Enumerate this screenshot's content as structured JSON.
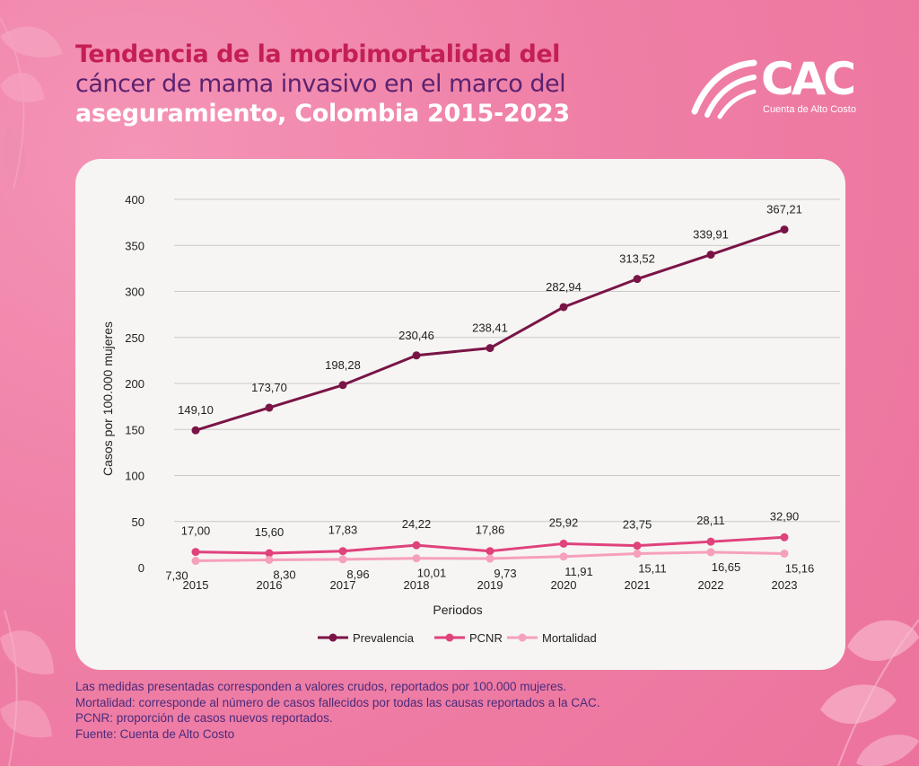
{
  "title": {
    "line1": "Tendencia de la morbimortalidad del",
    "line2": "cáncer de mama invasivo en el marco del",
    "line3": "aseguramiento, Colombia 2015-2023"
  },
  "logo": {
    "text": "CAC",
    "subtitle": "Cuenta de Alto Costo"
  },
  "colors": {
    "background": "#f07fa5",
    "prevalencia": "#7a1446",
    "pcnr": "#e0427c",
    "mortalidad": "#f6a0bd"
  },
  "footer": {
    "notes": [
      "Las medidas presentadas corresponden a valores crudos, reportados por 100.000 mujeres.",
      "Mortalidad: corresponde al número de casos fallecidos por todas las causas reportados a la CAC.",
      "PCNR: proporción de casos nuevos reportados.",
      "Fuente: Cuenta de Alto Costo"
    ]
  },
  "chart_data": {
    "type": "line",
    "x": [
      "2015",
      "2016",
      "2017",
      "2018",
      "2019",
      "2020",
      "2021",
      "2022",
      "2023"
    ],
    "xlabel": "Periodos",
    "ylabel": "Casos por 100.000 mujeres",
    "ylim": [
      0,
      400
    ],
    "yticks": [
      "0",
      "50",
      "100",
      "150",
      "200",
      "250",
      "300",
      "350",
      "400"
    ],
    "grid": true,
    "legend_position": "bottom",
    "series": [
      {
        "name": "Prevalencia",
        "color": "#7a1446",
        "values": [
          149.1,
          173.7,
          198.28,
          230.46,
          238.41,
          282.94,
          313.52,
          339.91,
          367.21
        ],
        "labels": [
          "149,10",
          "173,70",
          "198,28",
          "230,46",
          "238,41",
          "282,94",
          "313,52",
          "339,91",
          "367,21"
        ]
      },
      {
        "name": "PCNR",
        "color": "#e0427c",
        "values": [
          17.0,
          15.6,
          17.83,
          24.22,
          17.86,
          25.92,
          23.75,
          28.11,
          32.9
        ],
        "labels": [
          "17,00",
          "15,60",
          "17,83",
          "24,22",
          "17,86",
          "25,92",
          "23,75",
          "28,11",
          "32,90"
        ]
      },
      {
        "name": "Mortalidad",
        "color": "#f6a0bd",
        "values": [
          7.3,
          8.3,
          8.96,
          10.01,
          9.73,
          11.91,
          15.11,
          16.65,
          15.16
        ],
        "labels": [
          "7,30",
          "8,30",
          "8,96",
          "10,01",
          "9,73",
          "11,91",
          "15,11",
          "16,65",
          "15,16"
        ]
      }
    ]
  }
}
